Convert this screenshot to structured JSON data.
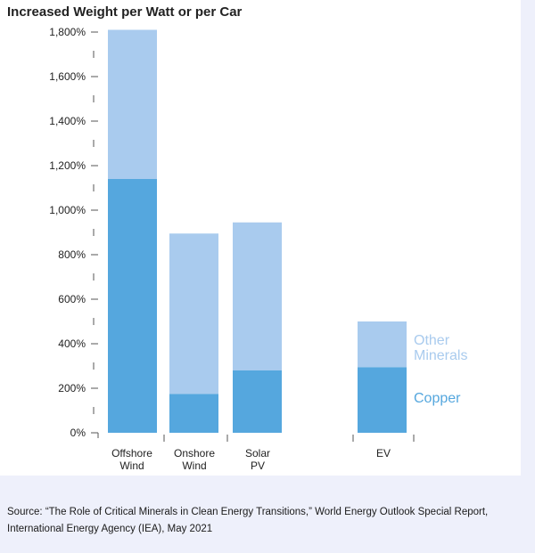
{
  "chart_data": {
    "type": "bar",
    "stacked": true,
    "title": "Increased Weight per Watt or per Car",
    "xlabel": "",
    "ylabel": "",
    "ylim": [
      0,
      1800
    ],
    "y_ticks": [
      "0%",
      "200%",
      "400%",
      "600%",
      "800%",
      "1,000%",
      "1,200%",
      "1,400%",
      "1,600%",
      "1,800%"
    ],
    "categories": [
      [
        "Offshore",
        "Wind"
      ],
      [
        "Onshore",
        "Wind"
      ],
      [
        "Solar",
        "PV"
      ],
      [
        "EV"
      ]
    ],
    "series": [
      {
        "name": "Copper",
        "color": "#55a7de",
        "values": [
          1140,
          175,
          280,
          295
        ]
      },
      {
        "name": "Other Minerals",
        "color": "#a9cbee",
        "values": [
          670,
          720,
          665,
          205
        ]
      }
    ],
    "grid": false,
    "legend_placement": "right"
  },
  "source_note": "Source: “The Role of Critical Minerals in Clean Energy Transitions,” World Energy Outlook Special Report, International Energy Agency (IEA), May 2021"
}
